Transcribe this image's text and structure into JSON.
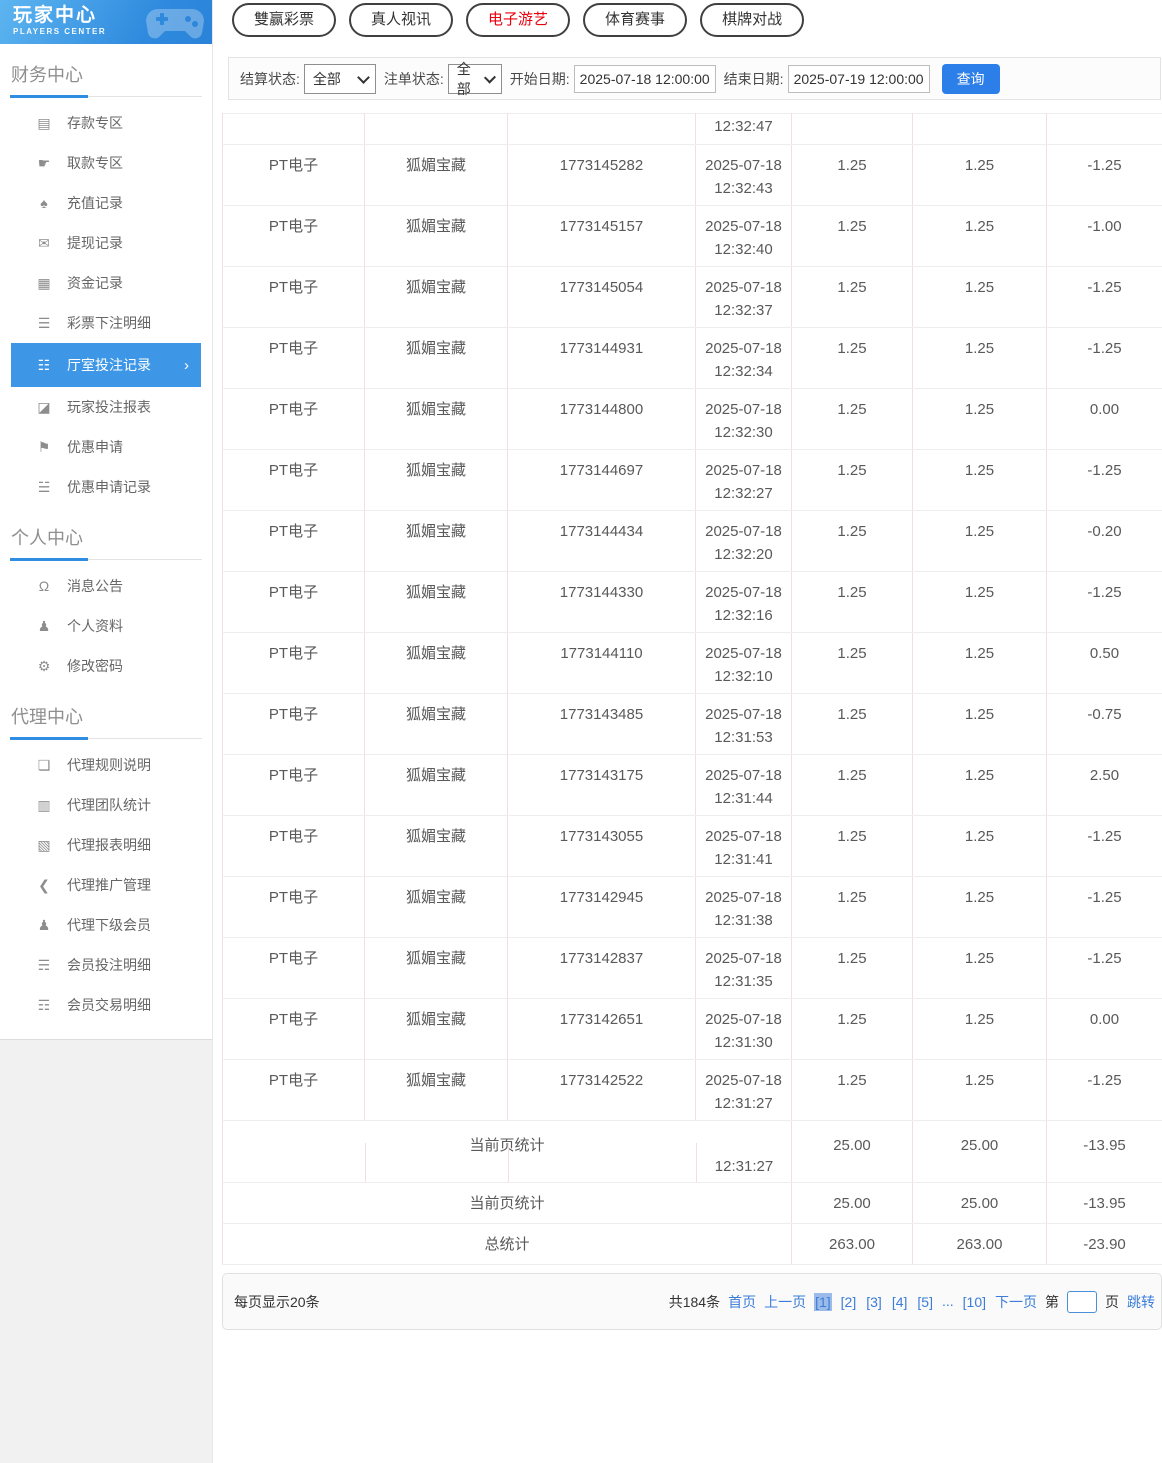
{
  "sidebar": {
    "logo": {
      "title": "玩家中心",
      "subtitle": "PLAYERS CENTER"
    },
    "sections": [
      {
        "title": "财务中心",
        "items": [
          {
            "id": "deposit",
            "label": "存款专区",
            "icon": "deposit-card-icon"
          },
          {
            "id": "withdraw",
            "label": "取款专区",
            "icon": "withdraw-hand-icon"
          },
          {
            "id": "recharge-record",
            "label": "充值记录",
            "icon": "moneybag-icon"
          },
          {
            "id": "withdrawal-record",
            "label": "提现记录",
            "icon": "wallet-icon"
          },
          {
            "id": "funds-record",
            "label": "资金记录",
            "icon": "ledger-icon"
          },
          {
            "id": "lottery-bet-detail",
            "label": "彩票下注明细",
            "icon": "list-icon"
          },
          {
            "id": "hall-bet-record",
            "label": "厅室投注记录",
            "icon": "record-list-icon",
            "active": true,
            "chevron": "›"
          },
          {
            "id": "player-bet-report",
            "label": "玩家投注报表",
            "icon": "chart-box-icon"
          },
          {
            "id": "promo-apply",
            "label": "优惠申请",
            "icon": "gift-flag-icon"
          },
          {
            "id": "promo-apply-record",
            "label": "优惠申请记录",
            "icon": "record-lines-icon"
          }
        ]
      },
      {
        "title": "个人中心",
        "items": [
          {
            "id": "announcements",
            "label": "消息公告",
            "icon": "bell-icon"
          },
          {
            "id": "profile",
            "label": "个人资料",
            "icon": "person-icon"
          },
          {
            "id": "change-password",
            "label": "修改密码",
            "icon": "gear-icon"
          }
        ]
      },
      {
        "title": "代理中心",
        "items": [
          {
            "id": "agent-rules",
            "label": "代理规则说明",
            "icon": "document-icon"
          },
          {
            "id": "agent-team-stats",
            "label": "代理团队统计",
            "icon": "stats-sheet-icon"
          },
          {
            "id": "agent-report-detail",
            "label": "代理报表明细",
            "icon": "report-sheet-icon"
          },
          {
            "id": "agent-promotion",
            "label": "代理推广管理",
            "icon": "share-icon"
          },
          {
            "id": "agent-sub-members",
            "label": "代理下级会员",
            "icon": "people-icon"
          },
          {
            "id": "member-bet-detail",
            "label": "会员投注明细",
            "icon": "bet-detail-icon"
          },
          {
            "id": "member-transaction-detail",
            "label": "会员交易明细",
            "icon": "transaction-detail-icon"
          }
        ]
      }
    ]
  },
  "tabs": [
    {
      "id": "lottery",
      "label": "雙赢彩票",
      "active": false
    },
    {
      "id": "live",
      "label": "真人视讯",
      "active": false
    },
    {
      "id": "egames",
      "label": "电子游艺",
      "active": true
    },
    {
      "id": "sports",
      "label": "体育赛事",
      "active": false
    },
    {
      "id": "board",
      "label": "棋牌对战",
      "active": false
    }
  ],
  "filters": {
    "settle_status_label": "结算状态:",
    "settle_status_value": "全部",
    "order_status_label": "注单状态:",
    "order_status_value": "全部",
    "start_date_label": "开始日期:",
    "start_date_value": "2025-07-18 12:00:00",
    "end_date_label": "结束日期:",
    "end_date_value": "2025-07-19 12:00:00",
    "query_button": "查询"
  },
  "table": {
    "partial_top_row_time": "12:32:47",
    "rows": [
      [
        "PT电子",
        "狐媚宝藏",
        "1773145282",
        "2025-07-18",
        "12:32:43",
        "1.25",
        "1.25",
        "-1.25"
      ],
      [
        "PT电子",
        "狐媚宝藏",
        "1773145157",
        "2025-07-18",
        "12:32:40",
        "1.25",
        "1.25",
        "-1.00"
      ],
      [
        "PT电子",
        "狐媚宝藏",
        "1773145054",
        "2025-07-18",
        "12:32:37",
        "1.25",
        "1.25",
        "-1.25"
      ],
      [
        "PT电子",
        "狐媚宝藏",
        "1773144931",
        "2025-07-18",
        "12:32:34",
        "1.25",
        "1.25",
        "-1.25"
      ],
      [
        "PT电子",
        "狐媚宝藏",
        "1773144800",
        "2025-07-18",
        "12:32:30",
        "1.25",
        "1.25",
        "0.00"
      ],
      [
        "PT电子",
        "狐媚宝藏",
        "1773144697",
        "2025-07-18",
        "12:32:27",
        "1.25",
        "1.25",
        "-1.25"
      ],
      [
        "PT电子",
        "狐媚宝藏",
        "1773144434",
        "2025-07-18",
        "12:32:20",
        "1.25",
        "1.25",
        "-0.20"
      ],
      [
        "PT电子",
        "狐媚宝藏",
        "1773144330",
        "2025-07-18",
        "12:32:16",
        "1.25",
        "1.25",
        "-1.25"
      ],
      [
        "PT电子",
        "狐媚宝藏",
        "1773144110",
        "2025-07-18",
        "12:32:10",
        "1.25",
        "1.25",
        "0.50"
      ],
      [
        "PT电子",
        "狐媚宝藏",
        "1773143485",
        "2025-07-18",
        "12:31:53",
        "1.25",
        "1.25",
        "-0.75"
      ],
      [
        "PT电子",
        "狐媚宝藏",
        "1773143175",
        "2025-07-18",
        "12:31:44",
        "1.25",
        "1.25",
        "2.50"
      ],
      [
        "PT电子",
        "狐媚宝藏",
        "1773143055",
        "2025-07-18",
        "12:31:41",
        "1.25",
        "1.25",
        "-1.25"
      ],
      [
        "PT电子",
        "狐媚宝藏",
        "1773142945",
        "2025-07-18",
        "12:31:38",
        "1.25",
        "1.25",
        "-1.25"
      ],
      [
        "PT电子",
        "狐媚宝藏",
        "1773142837",
        "2025-07-18",
        "12:31:35",
        "1.25",
        "1.25",
        "-1.25"
      ],
      [
        "PT电子",
        "狐媚宝藏",
        "1773142651",
        "2025-07-18",
        "12:31:30",
        "1.25",
        "1.25",
        "0.00"
      ],
      [
        "PT电子",
        "狐媚宝藏",
        "1773142522",
        "2025-07-18",
        "12:31:27",
        "1.25",
        "1.25",
        "-1.25"
      ]
    ],
    "ghost_time": "12:31:27",
    "page_stats_label": "当前页统计",
    "page_stats": [
      "25.00",
      "25.00",
      "-13.95"
    ],
    "total_stats_label": "总统计",
    "total_stats": [
      "263.00",
      "263.00",
      "-23.90"
    ]
  },
  "pagination": {
    "page_size_text": "每页显示20条",
    "total_text": "共184条",
    "first": "首页",
    "prev": "上一页",
    "pages": [
      {
        "label": "[1]",
        "selected": true
      },
      {
        "label": "[2]",
        "selected": false
      },
      {
        "label": "[3]",
        "selected": false
      },
      {
        "label": "[4]",
        "selected": false
      },
      {
        "label": "[5]",
        "selected": false
      },
      {
        "label": "...",
        "ellipsis": true
      },
      {
        "label": "[10]",
        "selected": false
      }
    ],
    "next": "下一页",
    "jump_prefix": "第",
    "jump_value": "",
    "jump_suffix": "页",
    "jump_button": "跳转"
  },
  "colors": {
    "sidebar_active_blue": "#3d97e6",
    "header_gradient_blue": "#2f8ade",
    "query_button_blue": "#2c7ee8",
    "active_tab_red": "#e8000d",
    "link_blue": "#3b7dd8",
    "selected_page_bg": "#9cbbe8",
    "table_vertical_border": "#f3dede",
    "table_horizontal_border": "#ededed"
  }
}
